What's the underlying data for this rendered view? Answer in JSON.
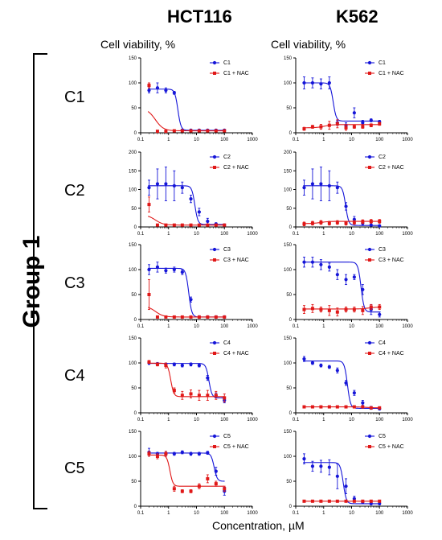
{
  "columns": [
    {
      "title": "HCT116",
      "ylabel": "Cell viability, %"
    },
    {
      "title": "K562",
      "ylabel": "Cell viability, %"
    }
  ],
  "group_label": "Group 1",
  "xlabel": "Concentration, µM",
  "colors": {
    "series_main": "#1515d8",
    "series_nac": "#e01818"
  },
  "row_labels": [
    "C1",
    "C2",
    "C3",
    "C4",
    "C5"
  ],
  "chart_data": [
    {
      "type": "scatter",
      "row": "C1",
      "cell": "HCT116",
      "xscale": "log",
      "xlim": [
        0.1,
        1000
      ],
      "ylim": [
        0,
        150
      ],
      "yticks": [
        0,
        50,
        100,
        150
      ],
      "xticks": [
        "0.1",
        "1",
        "10",
        "100",
        "1000"
      ],
      "series": [
        {
          "name": "C1",
          "x": [
            0.2,
            0.4,
            0.8,
            1.6,
            3.1,
            6.3,
            12.5,
            25,
            50,
            100
          ],
          "y": [
            85,
            90,
            85,
            80,
            5,
            5,
            5,
            5,
            5,
            5
          ],
          "err": [
            5,
            10,
            5,
            3,
            2,
            2,
            2,
            2,
            2,
            2
          ]
        },
        {
          "name": "C1 + NAC",
          "x": [
            0.2,
            0.4,
            0.8,
            1.6,
            3.1,
            6.3,
            12.5,
            25,
            50,
            100
          ],
          "y": [
            95,
            3,
            3,
            4,
            4,
            4,
            4,
            4,
            4,
            4
          ],
          "err": [
            5,
            1,
            1,
            1,
            1,
            1,
            1,
            1,
            1,
            1
          ]
        }
      ]
    },
    {
      "type": "scatter",
      "row": "C1",
      "cell": "K562",
      "xscale": "log",
      "xlim": [
        0.1,
        1000
      ],
      "ylim": [
        0,
        150
      ],
      "yticks": [
        0,
        50,
        100,
        150
      ],
      "xticks": [
        "0.1",
        "1",
        "10",
        "100",
        "1000"
      ],
      "series": [
        {
          "name": "C1",
          "x": [
            0.2,
            0.4,
            0.8,
            1.6,
            3.1,
            6.3,
            12.5,
            25,
            50,
            100
          ],
          "y": [
            100,
            100,
            98,
            100,
            20,
            15,
            40,
            20,
            25,
            22
          ],
          "err": [
            12,
            10,
            10,
            12,
            5,
            5,
            10,
            5,
            3,
            3
          ]
        },
        {
          "name": "C1 + NAC",
          "x": [
            0.2,
            0.4,
            0.8,
            1.6,
            3.1,
            6.3,
            12.5,
            25,
            50,
            100
          ],
          "y": [
            8,
            12,
            12,
            15,
            18,
            10,
            12,
            12,
            15,
            18
          ],
          "err": [
            3,
            3,
            5,
            8,
            8,
            5,
            3,
            3,
            3,
            3
          ]
        }
      ]
    },
    {
      "type": "scatter",
      "row": "C2",
      "cell": "HCT116",
      "xscale": "log",
      "xlim": [
        0.1,
        1000
      ],
      "ylim": [
        0,
        200
      ],
      "yticks": [
        0,
        50,
        100,
        150,
        200
      ],
      "xticks": [
        "0.1",
        "1",
        "10",
        "100",
        "1000"
      ],
      "series": [
        {
          "name": "C2",
          "x": [
            0.2,
            0.4,
            0.8,
            1.6,
            3.1,
            6.3,
            12.5,
            25,
            50,
            100
          ],
          "y": [
            105,
            115,
            115,
            110,
            105,
            75,
            40,
            15,
            8,
            5
          ],
          "err": [
            20,
            40,
            45,
            40,
            15,
            10,
            10,
            8,
            3,
            2
          ]
        },
        {
          "name": "C2 + NAC",
          "x": [
            0.2,
            0.4,
            0.8,
            1.6,
            3.1,
            6.3,
            12.5,
            25,
            50,
            100
          ],
          "y": [
            60,
            5,
            5,
            5,
            5,
            5,
            5,
            5,
            5,
            5
          ],
          "err": [
            20,
            2,
            2,
            2,
            2,
            2,
            2,
            2,
            2,
            2
          ]
        }
      ]
    },
    {
      "type": "scatter",
      "row": "C2",
      "cell": "K562",
      "xscale": "log",
      "xlim": [
        0.1,
        1000
      ],
      "ylim": [
        0,
        200
      ],
      "yticks": [
        0,
        50,
        100,
        150,
        200
      ],
      "xticks": [
        "0.1",
        "1",
        "10",
        "100",
        "1000"
      ],
      "series": [
        {
          "name": "C2",
          "x": [
            0.2,
            0.4,
            0.8,
            1.6,
            3.1,
            6.3,
            12.5,
            25,
            50,
            100
          ],
          "y": [
            105,
            115,
            115,
            110,
            105,
            55,
            20,
            10,
            5,
            3
          ],
          "err": [
            20,
            40,
            45,
            40,
            15,
            10,
            8,
            5,
            3,
            2
          ]
        },
        {
          "name": "C2 + NAC",
          "x": [
            0.2,
            0.4,
            0.8,
            1.6,
            3.1,
            6.3,
            12.5,
            25,
            50,
            100
          ],
          "y": [
            8,
            10,
            12,
            10,
            12,
            10,
            12,
            14,
            15,
            15
          ],
          "err": [
            5,
            5,
            5,
            5,
            5,
            5,
            5,
            5,
            5,
            5
          ]
        }
      ]
    },
    {
      "type": "scatter",
      "row": "C3",
      "cell": "HCT116",
      "xscale": "log",
      "xlim": [
        0.1,
        1000
      ],
      "ylim": [
        0,
        150
      ],
      "yticks": [
        0,
        50,
        100,
        150
      ],
      "xticks": [
        "0.1",
        "1",
        "10",
        "100",
        "1000"
      ],
      "series": [
        {
          "name": "C3",
          "x": [
            0.2,
            0.4,
            0.8,
            1.6,
            3.1,
            6.3,
            12.5,
            25,
            50,
            100
          ],
          "y": [
            100,
            105,
            98,
            100,
            95,
            40,
            5,
            5,
            5,
            5
          ],
          "err": [
            10,
            10,
            5,
            5,
            5,
            5,
            2,
            2,
            2,
            2
          ]
        },
        {
          "name": "C3 + NAC",
          "x": [
            0.2,
            0.4,
            0.8,
            1.6,
            3.1,
            6.3,
            12.5,
            25,
            50,
            100
          ],
          "y": [
            50,
            5,
            5,
            5,
            5,
            5,
            5,
            5,
            5,
            5
          ],
          "err": [
            30,
            2,
            2,
            2,
            2,
            2,
            2,
            2,
            2,
            2
          ]
        }
      ]
    },
    {
      "type": "scatter",
      "row": "C3",
      "cell": "K562",
      "xscale": "log",
      "xlim": [
        0.1,
        1000
      ],
      "ylim": [
        0,
        150
      ],
      "yticks": [
        0,
        50,
        100,
        150
      ],
      "xticks": [
        "0.1",
        "1",
        "10",
        "100",
        "1000"
      ],
      "series": [
        {
          "name": "C3",
          "x": [
            0.2,
            0.4,
            0.8,
            1.6,
            3.1,
            6.3,
            12.5,
            25,
            50,
            100
          ],
          "y": [
            115,
            115,
            110,
            105,
            90,
            80,
            85,
            60,
            20,
            10
          ],
          "err": [
            10,
            10,
            10,
            8,
            10,
            10,
            5,
            10,
            10,
            5
          ]
        },
        {
          "name": "C3 + NAC",
          "x": [
            0.2,
            0.4,
            0.8,
            1.6,
            3.1,
            6.3,
            12.5,
            25,
            50,
            100
          ],
          "y": [
            20,
            22,
            20,
            18,
            15,
            20,
            20,
            18,
            25,
            25
          ],
          "err": [
            8,
            8,
            5,
            10,
            8,
            5,
            5,
            8,
            5,
            5
          ]
        }
      ]
    },
    {
      "type": "scatter",
      "row": "C4",
      "cell": "HCT116",
      "xscale": "log",
      "xlim": [
        0.1,
        1000
      ],
      "ylim": [
        0,
        150
      ],
      "yticks": [
        0,
        50,
        100,
        150
      ],
      "xticks": [
        "0.1",
        "1",
        "10",
        "100",
        "1000"
      ],
      "series": [
        {
          "name": "C4",
          "x": [
            0.2,
            0.4,
            0.8,
            1.6,
            3.1,
            6.3,
            12.5,
            25,
            50,
            100
          ],
          "y": [
            100,
            98,
            97,
            97,
            95,
            97,
            95,
            70,
            35,
            25
          ],
          "err": [
            3,
            3,
            3,
            3,
            3,
            3,
            3,
            5,
            5,
            5
          ]
        },
        {
          "name": "C4 + NAC",
          "x": [
            0.2,
            0.4,
            0.8,
            1.6,
            3.1,
            6.3,
            12.5,
            25,
            50,
            100
          ],
          "y": [
            102,
            97,
            95,
            45,
            35,
            38,
            35,
            35,
            35,
            30
          ],
          "err": [
            3,
            3,
            5,
            5,
            8,
            8,
            10,
            10,
            8,
            8
          ]
        }
      ]
    },
    {
      "type": "scatter",
      "row": "C4",
      "cell": "K562",
      "xscale": "log",
      "xlim": [
        0.1,
        1000
      ],
      "ylim": [
        0,
        150
      ],
      "yticks": [
        0,
        50,
        100,
        150
      ],
      "xticks": [
        "0.1",
        "1",
        "10",
        "100",
        "1000"
      ],
      "series": [
        {
          "name": "C4",
          "x": [
            0.2,
            0.4,
            0.8,
            1.6,
            3.1,
            6.3,
            12.5,
            25,
            50,
            100
          ],
          "y": [
            108,
            100,
            95,
            92,
            85,
            60,
            40,
            20,
            10,
            8
          ],
          "err": [
            5,
            3,
            3,
            3,
            5,
            5,
            5,
            5,
            3,
            2
          ]
        },
        {
          "name": "C4 + NAC",
          "x": [
            0.2,
            0.4,
            0.8,
            1.6,
            3.1,
            6.3,
            12.5,
            25,
            50,
            100
          ],
          "y": [
            12,
            12,
            12,
            12,
            12,
            12,
            12,
            12,
            10,
            10
          ],
          "err": [
            2,
            2,
            2,
            2,
            2,
            2,
            2,
            2,
            2,
            2
          ]
        }
      ]
    },
    {
      "type": "scatter",
      "row": "C5",
      "cell": "HCT116",
      "xscale": "log",
      "xlim": [
        0.1,
        1000
      ],
      "ylim": [
        0,
        150
      ],
      "yticks": [
        0,
        50,
        100,
        150
      ],
      "xticks": [
        "0.1",
        "1",
        "10",
        "100",
        "1000"
      ],
      "series": [
        {
          "name": "C5",
          "x": [
            0.2,
            0.4,
            0.8,
            1.6,
            3.1,
            6.3,
            12.5,
            25,
            50,
            100
          ],
          "y": [
            108,
            105,
            105,
            105,
            108,
            105,
            105,
            107,
            70,
            30
          ],
          "err": [
            8,
            3,
            3,
            3,
            3,
            3,
            3,
            3,
            8,
            8
          ]
        },
        {
          "name": "C5 + NAC",
          "x": [
            0.2,
            0.4,
            0.8,
            1.6,
            3.1,
            6.3,
            12.5,
            25,
            50,
            100
          ],
          "y": [
            105,
            100,
            105,
            35,
            30,
            30,
            40,
            55,
            45,
            35
          ],
          "err": [
            5,
            5,
            5,
            5,
            3,
            3,
            5,
            8,
            5,
            5
          ]
        }
      ]
    },
    {
      "type": "scatter",
      "row": "C5",
      "cell": "K562",
      "xscale": "log",
      "xlim": [
        0.1,
        1000
      ],
      "ylim": [
        0,
        150
      ],
      "yticks": [
        0,
        50,
        100,
        150
      ],
      "xticks": [
        "0.1",
        "1",
        "10",
        "100",
        "1000"
      ],
      "series": [
        {
          "name": "C5",
          "x": [
            0.2,
            0.4,
            0.8,
            1.6,
            3.1,
            6.3,
            12.5,
            25,
            50,
            100
          ],
          "y": [
            95,
            80,
            80,
            78,
            60,
            40,
            15,
            8,
            5,
            5
          ],
          "err": [
            10,
            10,
            12,
            15,
            25,
            15,
            5,
            3,
            2,
            2
          ]
        },
        {
          "name": "C5 + NAC",
          "x": [
            0.2,
            0.4,
            0.8,
            1.6,
            3.1,
            6.3,
            12.5,
            25,
            50,
            100
          ],
          "y": [
            10,
            10,
            10,
            10,
            10,
            10,
            10,
            10,
            10,
            10
          ],
          "err": [
            2,
            2,
            2,
            2,
            2,
            2,
            2,
            2,
            2,
            2
          ]
        }
      ]
    }
  ]
}
